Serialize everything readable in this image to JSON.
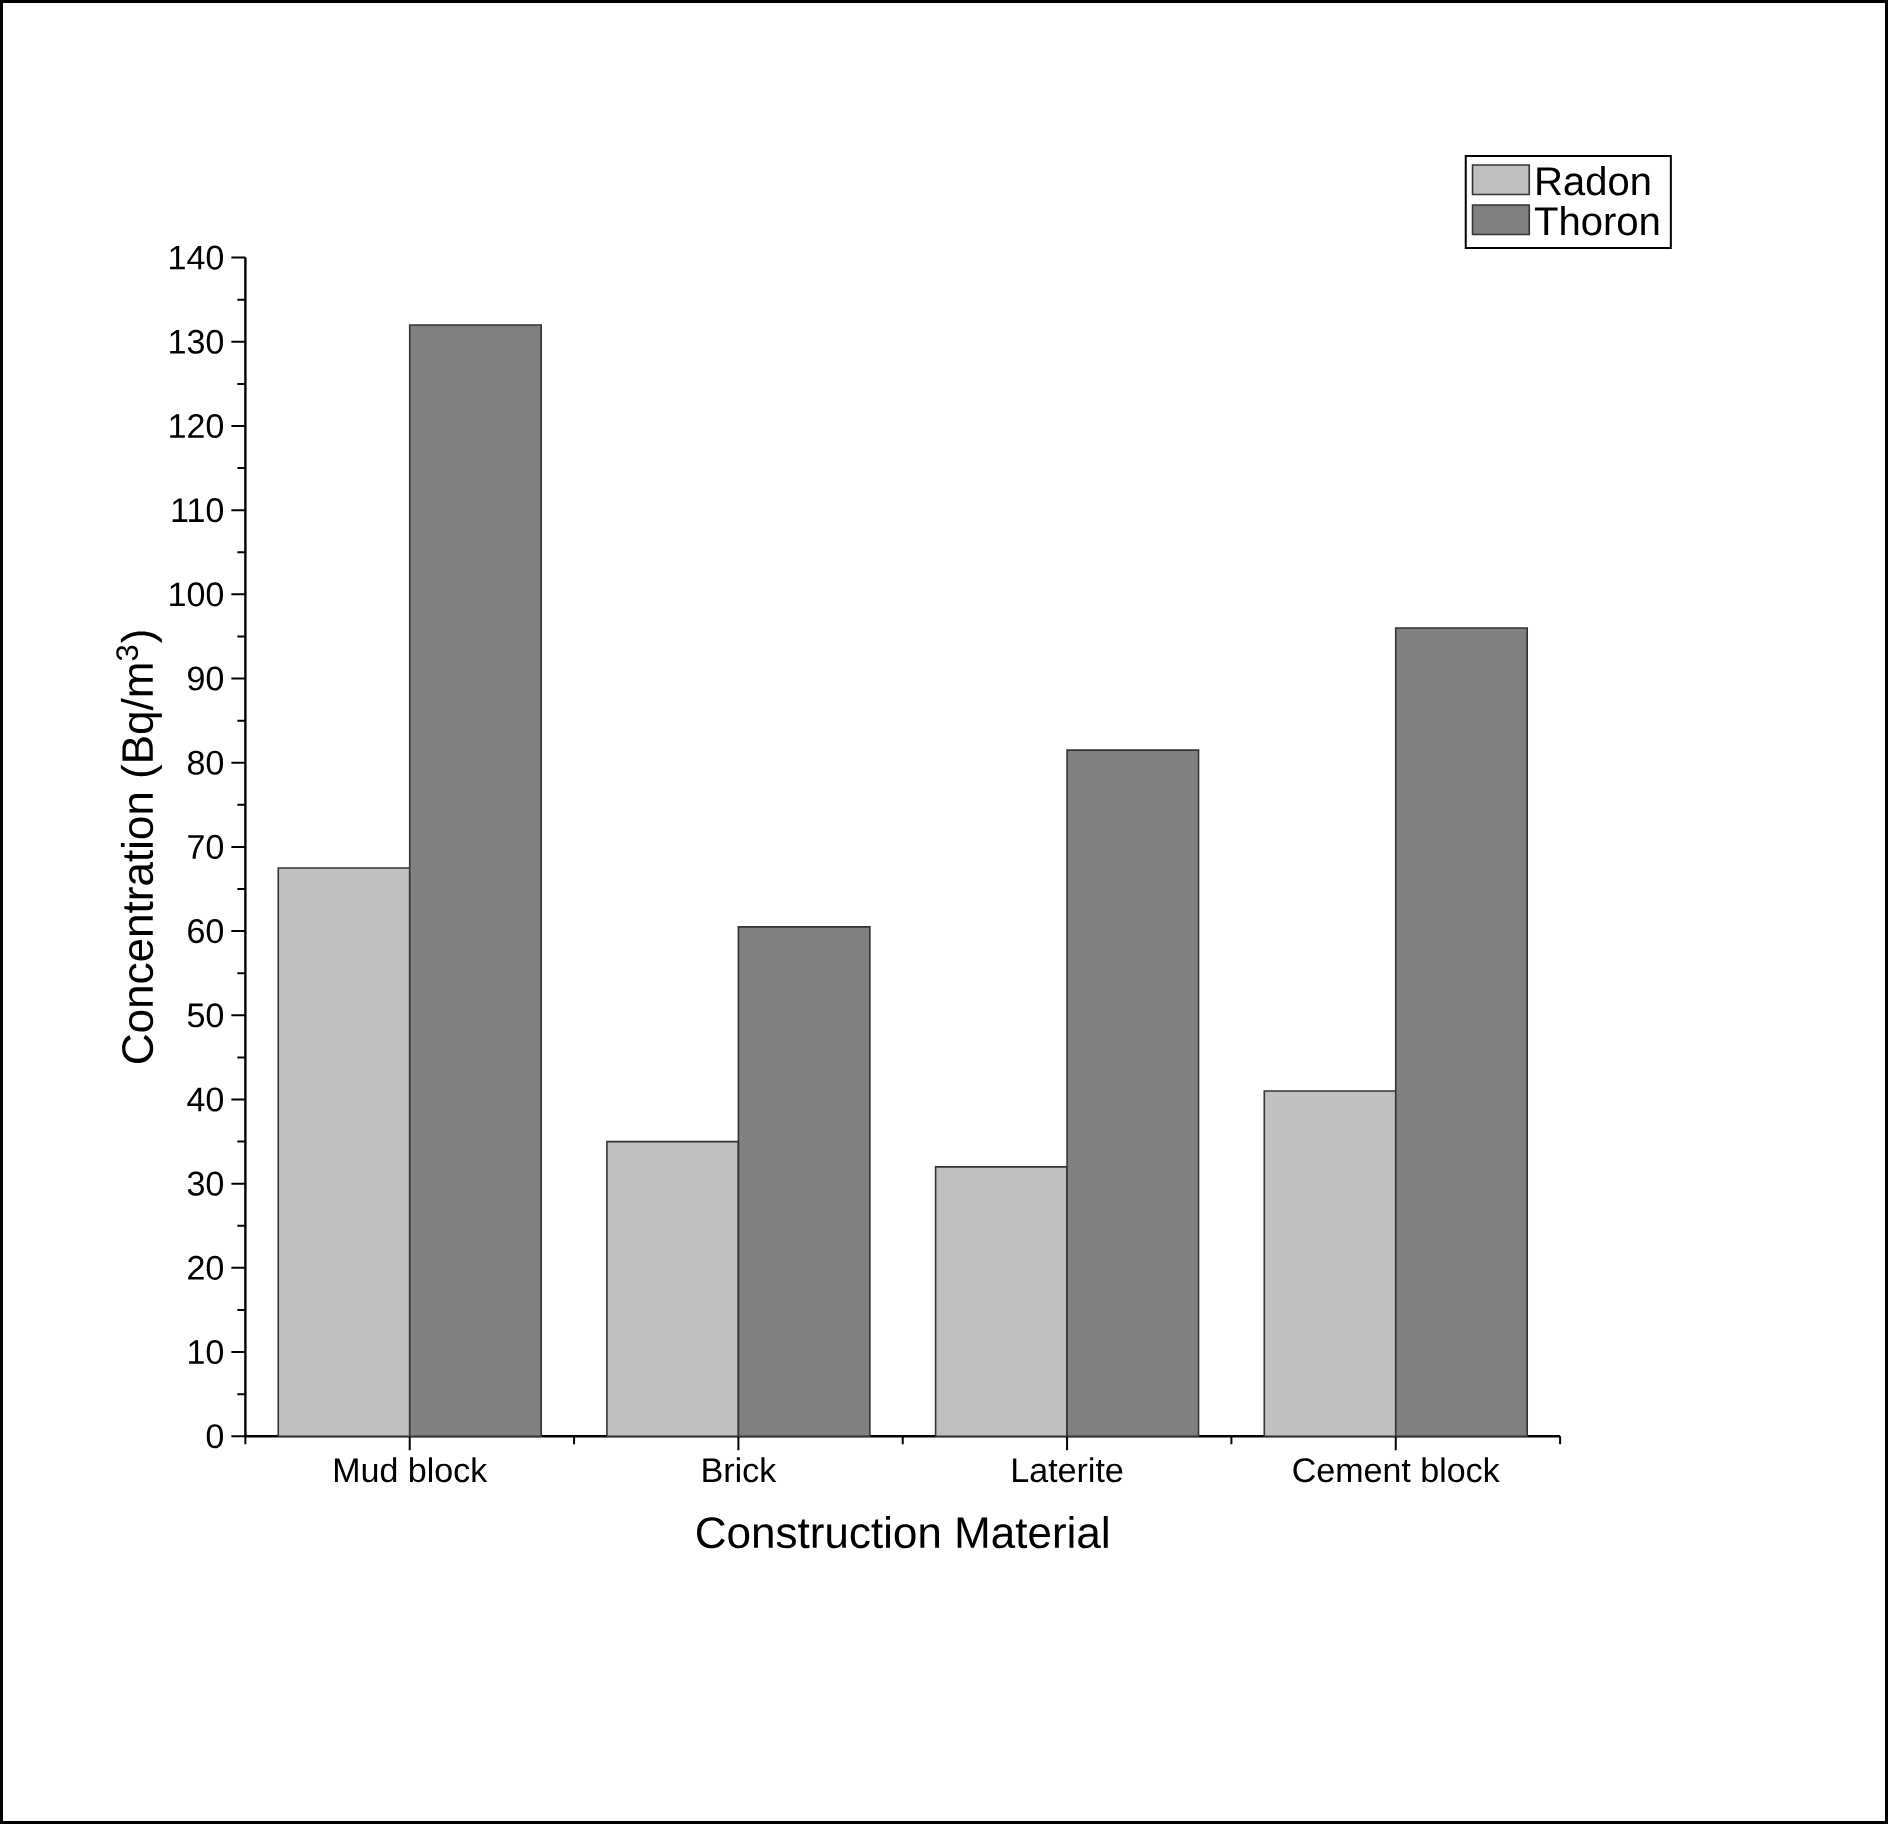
{
  "chart_data": {
    "type": "bar",
    "xlabel": "Construction Material",
    "ylabel": "Concentration (Bq/m$^{3}$)",
    "categories": [
      "Mud block",
      "Brick",
      "Laterite",
      "Cement block"
    ],
    "series": [
      {
        "name": "Radon",
        "color": "#c0c0c0",
        "values": [
          67.5,
          35,
          32,
          41
        ]
      },
      {
        "name": "Thoron",
        "color": "#808080",
        "values": [
          132,
          60.5,
          81.5,
          96
        ]
      }
    ],
    "ylim": [
      0,
      140
    ],
    "yticks": [
      0,
      10,
      20,
      30,
      40,
      50,
      60,
      70,
      80,
      90,
      100,
      110,
      120,
      130,
      140
    ],
    "legend": "top right",
    "grid": false
  }
}
